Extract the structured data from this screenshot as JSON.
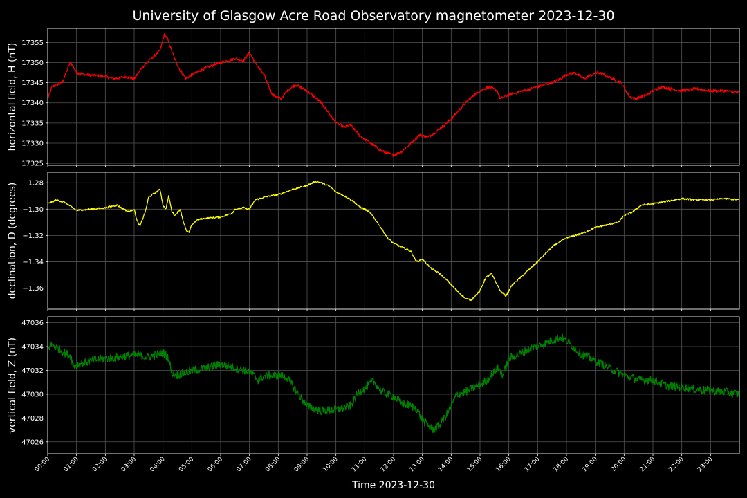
{
  "colors": {
    "background": "#000000",
    "h_line": "#ff0000",
    "d_line": "#ffff00",
    "z_line": "#008000",
    "grid": "#555555"
  },
  "chart_data": {
    "type": "line",
    "title": "University of Glasgow Acre Road Observatory magnetometer 2023-12-30",
    "xlabel": "Time 2023-12-30",
    "x_ticks": [
      "00:00",
      "01:00",
      "02:00",
      "03:00",
      "04:00",
      "05:00",
      "06:00",
      "07:00",
      "08:00",
      "09:00",
      "10:00",
      "11:00",
      "12:00",
      "13:00",
      "14:00",
      "15:00",
      "16:00",
      "17:00",
      "18:00",
      "19:00",
      "20:00",
      "21:00",
      "22:00",
      "23:00"
    ],
    "xlim_hours": [
      0,
      24
    ],
    "grid": true,
    "panels": [
      {
        "ylabel": "horizontal field, H (nT)",
        "color": "#ff0000",
        "ylim": [
          17324.5,
          17358.5
        ],
        "yticks": [
          17325,
          17330,
          17335,
          17340,
          17345,
          17350,
          17355
        ],
        "ytick_decimals": 0,
        "noise": 0.35,
        "x": [
          0,
          0.15,
          0.5,
          0.75,
          0.8,
          1.0,
          1.3,
          2.0,
          2.3,
          2.7,
          3.0,
          3.3,
          3.6,
          3.9,
          4.05,
          4.15,
          4.4,
          4.6,
          4.8,
          5.0,
          5.3,
          5.6,
          6.0,
          6.5,
          6.8,
          7.0,
          7.2,
          7.5,
          7.8,
          8.1,
          8.3,
          8.6,
          9.0,
          9.5,
          10.0,
          10.3,
          10.5,
          10.8,
          11.0,
          11.3,
          11.6,
          12.0,
          12.3,
          12.6,
          12.9,
          13.2,
          13.5,
          14.0,
          14.5,
          14.8,
          15.0,
          15.3,
          15.6,
          15.7,
          16.0,
          16.5,
          17.0,
          17.5,
          17.8,
          18.0,
          18.3,
          18.6,
          18.9,
          19.1,
          19.3,
          19.6,
          19.9,
          20.2,
          20.4,
          20.8,
          21.0,
          21.3,
          21.6,
          22.0,
          22.5,
          23.0,
          23.5,
          24.0
        ],
        "y": [
          17341,
          17344,
          17345,
          17349.5,
          17350,
          17347.5,
          17347,
          17346.5,
          17346,
          17346.5,
          17346,
          17349,
          17351,
          17353,
          17357,
          17356,
          17351,
          17348,
          17346,
          17347,
          17348,
          17349,
          17350,
          17351,
          17350.5,
          17352.5,
          17350,
          17347,
          17342,
          17341,
          17343,
          17344.5,
          17343,
          17340,
          17335,
          17334,
          17334.5,
          17332,
          17331,
          17329.5,
          17328,
          17327,
          17328,
          17330,
          17332,
          17331.5,
          17333,
          17336,
          17340,
          17342,
          17343,
          17344,
          17343,
          17341,
          17342,
          17343,
          17344,
          17345,
          17346,
          17347,
          17347.5,
          17346,
          17347,
          17347.5,
          17347,
          17346,
          17345,
          17341.5,
          17341,
          17342,
          17343,
          17344,
          17343.5,
          17343,
          17343.5,
          17343,
          17343,
          17342.5
        ]
      },
      {
        "ylabel": "declination, D (degrees)",
        "color": "#ffff00",
        "ylim": [
          -1.376,
          -1.272
        ],
        "yticks": [
          -1.36,
          -1.34,
          -1.32,
          -1.3,
          -1.28
        ],
        "ytick_decimals": 2,
        "noise": 0.0006,
        "x": [
          0,
          0.1,
          0.3,
          0.6,
          1.0,
          1.5,
          2.0,
          2.4,
          2.8,
          3.0,
          3.1,
          3.2,
          3.4,
          3.5,
          3.7,
          3.9,
          4.0,
          4.1,
          4.2,
          4.3,
          4.4,
          4.6,
          4.7,
          4.8,
          4.9,
          5.0,
          5.2,
          5.5,
          6.0,
          6.4,
          6.5,
          6.8,
          7.0,
          7.2,
          7.5,
          8.0,
          8.5,
          9.0,
          9.3,
          9.5,
          9.8,
          10.0,
          10.3,
          10.6,
          10.8,
          11.0,
          11.2,
          11.5,
          11.8,
          12.0,
          12.3,
          12.6,
          12.8,
          13.0,
          13.3,
          13.6,
          13.9,
          14.2,
          14.5,
          14.7,
          15.0,
          15.2,
          15.4,
          15.7,
          15.9,
          16.1,
          16.5,
          17.0,
          17.3,
          17.6,
          18.0,
          18.3,
          18.6,
          19.0,
          19.4,
          19.8,
          20.0,
          20.3,
          20.6,
          21.0,
          21.5,
          22.0,
          22.5,
          23.0,
          23.5,
          24.0
        ],
        "y": [
          -1.296,
          -1.295,
          -1.293,
          -1.295,
          -1.301,
          -1.3,
          -1.299,
          -1.297,
          -1.302,
          -1.3,
          -1.309,
          -1.313,
          -1.301,
          -1.291,
          -1.288,
          -1.285,
          -1.297,
          -1.3,
          -1.29,
          -1.301,
          -1.305,
          -1.3,
          -1.309,
          -1.316,
          -1.318,
          -1.312,
          -1.308,
          -1.307,
          -1.306,
          -1.303,
          -1.3,
          -1.299,
          -1.3,
          -1.293,
          -1.291,
          -1.289,
          -1.285,
          -1.282,
          -1.279,
          -1.28,
          -1.283,
          -1.287,
          -1.29,
          -1.294,
          -1.298,
          -1.3,
          -1.303,
          -1.312,
          -1.322,
          -1.326,
          -1.329,
          -1.332,
          -1.34,
          -1.338,
          -1.345,
          -1.349,
          -1.355,
          -1.362,
          -1.368,
          -1.369,
          -1.362,
          -1.352,
          -1.349,
          -1.362,
          -1.366,
          -1.358,
          -1.35,
          -1.34,
          -1.333,
          -1.327,
          -1.322,
          -1.32,
          -1.318,
          -1.314,
          -1.312,
          -1.31,
          -1.305,
          -1.302,
          -1.297,
          -1.296,
          -1.294,
          -1.292,
          -1.293,
          -1.293,
          -1.292,
          -1.293
        ]
      },
      {
        "ylabel": "vertical field, Z (nT)",
        "color": "#008000",
        "ylim": [
          47025,
          47036.5
        ],
        "yticks": [
          47026,
          47028,
          47030,
          47032,
          47034,
          47036
        ],
        "ytick_decimals": 0,
        "noise": 0.35,
        "x": [
          0,
          0.15,
          0.5,
          0.8,
          0.9,
          1.2,
          1.5,
          2.0,
          2.5,
          3.0,
          3.5,
          4.0,
          4.2,
          4.3,
          4.5,
          5.0,
          5.5,
          6.0,
          6.5,
          7.0,
          7.3,
          7.5,
          8.0,
          8.3,
          8.7,
          9.0,
          9.5,
          10.0,
          10.5,
          10.8,
          11.0,
          11.3,
          11.6,
          12.0,
          12.3,
          12.5,
          12.8,
          13.0,
          13.2,
          13.4,
          13.6,
          13.9,
          14.2,
          14.5,
          15.0,
          15.3,
          15.6,
          15.8,
          16.0,
          16.4,
          16.8,
          17.2,
          17.5,
          17.8,
          18.0,
          18.5,
          19.0,
          19.5,
          20.0,
          20.5,
          21.0,
          21.5,
          22.0,
          22.5,
          23.0,
          23.5,
          24.0
        ],
        "y": [
          47033.8,
          47034.2,
          47033.6,
          47033.2,
          47032.4,
          47032.6,
          47032.8,
          47033.0,
          47033.1,
          47033.3,
          47033.1,
          47033.5,
          47033.0,
          47031.8,
          47031.6,
          47032.0,
          47032.2,
          47032.5,
          47032.2,
          47031.9,
          47031.2,
          47031.5,
          47031.6,
          47031.4,
          47030.0,
          47029.0,
          47028.6,
          47028.7,
          47029.0,
          47030.2,
          47030.5,
          47031.1,
          47030.2,
          47029.8,
          47029.2,
          47029.1,
          47028.8,
          47027.8,
          47027.4,
          47027.0,
          47027.4,
          47028.5,
          47030.0,
          47030.2,
          47030.8,
          47031.3,
          47032.2,
          47031.6,
          47033.0,
          47033.4,
          47033.9,
          47034.2,
          47034.5,
          47034.8,
          47034.5,
          47033.4,
          47032.8,
          47032.2,
          47031.6,
          47031.2,
          47031.2,
          47030.7,
          47030.6,
          47030.4,
          47030.3,
          47030.2,
          47030.0
        ]
      }
    ]
  }
}
